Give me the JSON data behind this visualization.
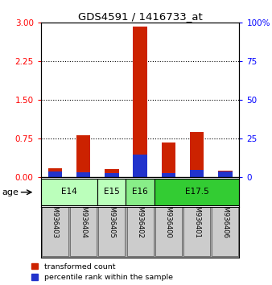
{
  "title": "GDS4591 / 1416733_at",
  "samples": [
    "GSM936403",
    "GSM936404",
    "GSM936405",
    "GSM936402",
    "GSM936400",
    "GSM936401",
    "GSM936406"
  ],
  "transformed_count": [
    0.18,
    0.82,
    0.17,
    2.92,
    0.68,
    0.88,
    0.13
  ],
  "percentile_rank": [
    0.12,
    0.1,
    0.09,
    0.44,
    0.08,
    0.14,
    0.11
  ],
  "age_groups": [
    {
      "label": "E14",
      "start": 0,
      "end": 1,
      "color": "#ccffcc"
    },
    {
      "label": "E15",
      "start": 2,
      "end": 2,
      "color": "#ccffcc"
    },
    {
      "label": "E16",
      "start": 3,
      "end": 3,
      "color": "#99ee99"
    },
    {
      "label": "E17.5",
      "start": 4,
      "end": 6,
      "color": "#44dd44"
    }
  ],
  "bar_width": 0.25,
  "red_color": "#cc2200",
  "blue_color": "#2233cc",
  "ylim_left": [
    0,
    3
  ],
  "ylim_right": [
    0,
    100
  ],
  "yticks_left": [
    0,
    0.75,
    1.5,
    2.25,
    3
  ],
  "yticks_right": [
    0,
    25,
    50,
    75,
    100
  ],
  "sample_bg": "#cccccc",
  "age_light": "#bbffbb",
  "age_medium": "#88ee88",
  "age_dark": "#33cc33"
}
